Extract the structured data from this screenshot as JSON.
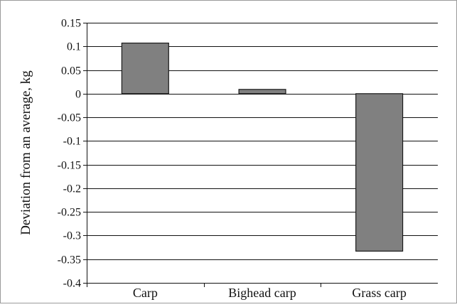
{
  "chart_data": {
    "type": "bar",
    "title": "",
    "xlabel": "",
    "ylabel": "Deviation from an average, kg",
    "categories": [
      "Carp",
      "Bighead carp",
      "Grass carp"
    ],
    "values": [
      0.107,
      0.009,
      -0.333
    ],
    "ylim": [
      -0.4,
      0.15
    ],
    "y_ticks": [
      0.15,
      0.1,
      0.05,
      0,
      -0.05,
      -0.1,
      -0.15,
      -0.2,
      -0.25,
      -0.3,
      -0.35,
      -0.4
    ],
    "y_tick_labels": [
      "0.15",
      "0.1",
      "0.05",
      "0",
      "-0.05",
      "-0.1",
      "-0.15",
      "-0.2",
      "-0.25",
      "-0.3",
      "-0.35",
      "-0.4"
    ],
    "grid": true,
    "legend": "none",
    "colors": {
      "bar_fill": "#808080",
      "bar_stroke": "#1a1a1a",
      "grid": "#111111",
      "frame": "#888888"
    }
  }
}
